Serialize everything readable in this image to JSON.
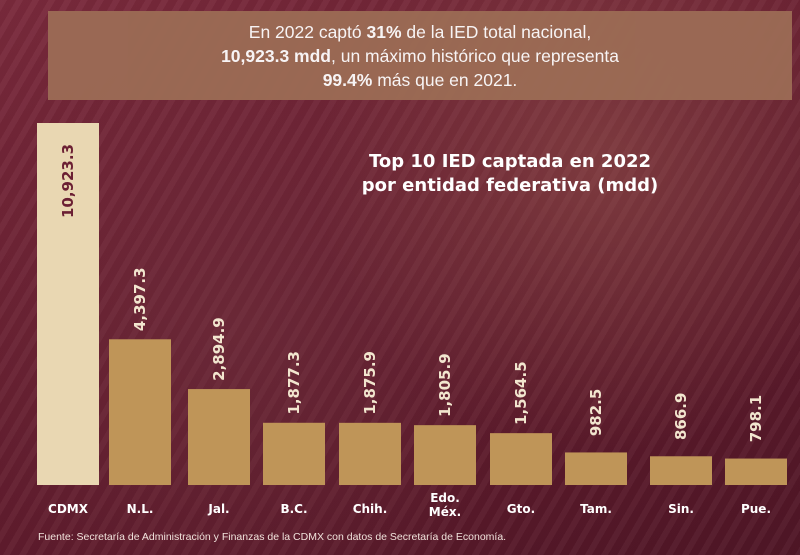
{
  "banner": {
    "line1_pre": "En 2022 captó ",
    "line1_bold": "31%",
    "line1_post": " de la IED total nacional,",
    "line2_bold": "10,923.3 mdd",
    "line2_post": ", un máximo histórico que representa",
    "line3_bold": "99.4%",
    "line3_post": " más que en 2021."
  },
  "chart_data": {
    "type": "bar",
    "title": "Top 10 IED captada en 2022 por entidad federativa  (mdd)",
    "categories": [
      "CDMX",
      "N.L.",
      "Jal.",
      "B.C.",
      "Chih.",
      "Edo. Méx.",
      "Gto.",
      "Tam.",
      "Sin.",
      "Pue."
    ],
    "values": [
      10923.3,
      4397.3,
      2894.9,
      1877.3,
      1875.9,
      1805.9,
      1564.5,
      982.5,
      866.9,
      798.1
    ],
    "value_labels": [
      "10,923.3",
      "4,397.3",
      "2,894.9",
      "1,877.3",
      "1,875.9",
      "1,805.9",
      "1,564.5",
      "982.5",
      "866.9",
      "798.1"
    ],
    "colors": {
      "highlight": "#e9d7b2",
      "bar": "#bf9558",
      "label_dark": "#6b1f33",
      "label_light": "#f2e6cf"
    }
  },
  "chart_title": {
    "line1": "Top 10 IED captada en 2022",
    "line2": "por entidad federativa  (mdd)"
  },
  "source": "Fuente: Secretaría de Administración y Finanzas de la CDMX con datos de Secretaría de Economía."
}
